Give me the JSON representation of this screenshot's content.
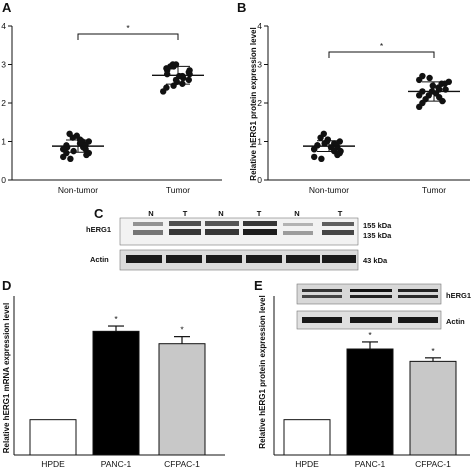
{
  "chart_data": [
    {
      "panel": "A",
      "type": "scatter",
      "ylabel": "",
      "ylim": [
        0,
        4
      ],
      "yticks": [
        "0",
        "1",
        "2",
        "3",
        "4"
      ],
      "categories": [
        "Non-tumor",
        "Tumor"
      ],
      "series": [
        {
          "values": [
            0.85,
            0.9,
            1.2,
            1.15,
            1.05,
            0.95,
            1.0,
            0.8,
            0.7,
            0.6,
            0.55,
            0.75,
            1.1,
            0.95,
            0.85,
            0.65,
            0.9,
            1.0,
            0.8,
            0.7
          ]
        },
        {
          "values": [
            2.3,
            2.4,
            2.45,
            2.55,
            2.6,
            2.65,
            2.7,
            2.75,
            2.8,
            2.85,
            2.9,
            2.95,
            3.0,
            3.0,
            2.7,
            2.5,
            2.85,
            2.6,
            2.75,
            2.95
          ]
        }
      ],
      "means": [
        0.88,
        2.72
      ],
      "sd": [
        0.16,
        0.23
      ],
      "significance": "*"
    },
    {
      "panel": "B",
      "type": "scatter",
      "ylabel": "Relative hERG1 protein expression level",
      "ylim": [
        0,
        4
      ],
      "yticks": [
        "0",
        "1",
        "2",
        "3",
        "4"
      ],
      "categories": [
        "Non-tumor",
        "Tumor"
      ],
      "series": [
        {
          "values": [
            0.8,
            0.9,
            1.1,
            1.2,
            1.0,
            0.95,
            0.85,
            0.75,
            0.7,
            0.6,
            0.55,
            0.95,
            1.05,
            0.85,
            0.75,
            0.65,
            0.9,
            1.0,
            0.8,
            0.9
          ]
        },
        {
          "values": [
            1.9,
            2.0,
            2.1,
            2.2,
            2.3,
            2.35,
            2.4,
            2.5,
            2.55,
            2.6,
            2.7,
            2.65,
            2.45,
            2.25,
            2.15,
            2.05,
            2.35,
            2.5,
            2.2,
            2.3
          ]
        }
      ],
      "means": [
        0.88,
        2.3
      ],
      "sd": [
        0.14,
        0.25
      ],
      "significance": "*"
    },
    {
      "panel": "D",
      "type": "bar",
      "ylabel": "Relative hERG1 mRNA expression level",
      "ylim": [
        0,
        4
      ],
      "categories": [
        "HPDE",
        "PANC-1",
        "CFPAC-1"
      ],
      "values": [
        1.0,
        3.5,
        3.15
      ],
      "errors": [
        0,
        0.15,
        0.2
      ],
      "bar_colors": [
        "#ffffff",
        "#000000",
        "#c8c8c8"
      ],
      "significance": [
        "",
        "*",
        "*"
      ]
    },
    {
      "panel": "E",
      "type": "bar",
      "ylabel": "Relative hERG1 protein expression level",
      "ylim": [
        0,
        4
      ],
      "categories": [
        "HPDE",
        "PANC-1",
        "CFPAC-1"
      ],
      "values": [
        1.0,
        3.0,
        2.65
      ],
      "errors": [
        0,
        0.2,
        0.1
      ],
      "bar_colors": [
        "#ffffff",
        "#000000",
        "#c8c8c8"
      ],
      "significance": [
        "",
        "*",
        "*"
      ]
    }
  ],
  "panels": {
    "a": {
      "letter": "A"
    },
    "b": {
      "letter": "B"
    },
    "c": {
      "letter": "C",
      "lane_labels": [
        "N",
        "T",
        "N",
        "T",
        "N",
        "T"
      ],
      "row1_label": "hERG1",
      "row2_label": "Actin",
      "kda_155": "155 kDa",
      "kda_135": "135 kDa",
      "kda_43": "43 kDa"
    },
    "d": {
      "letter": "D"
    },
    "e": {
      "letter": "E",
      "blot_label_1": "hERG1",
      "blot_label_2": "Actin"
    }
  }
}
